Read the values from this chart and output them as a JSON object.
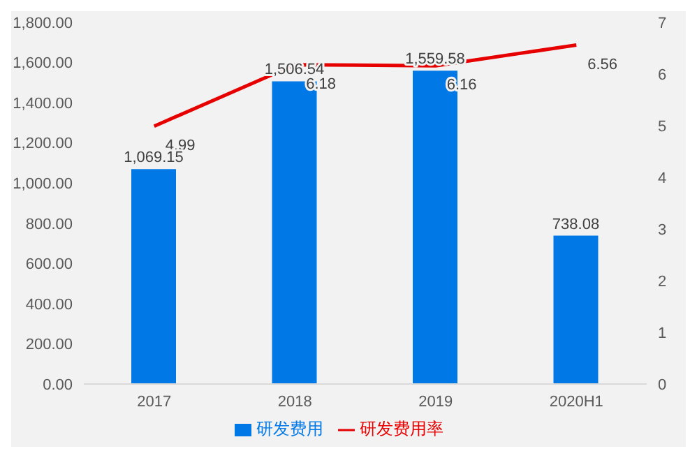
{
  "chart_data": {
    "type": "bar",
    "categories": [
      "2017",
      "2018",
      "2019",
      "2020H1"
    ],
    "series": [
      {
        "name": "研发费用",
        "color": "#0078e6",
        "values": [
          1069.15,
          1506.54,
          1559.58,
          738.08
        ],
        "value_labels": [
          "1,069.15",
          "1,506.54",
          "1,559.58",
          "738.08"
        ]
      },
      {
        "name": "研发费用率",
        "type": "line",
        "axis": "y2",
        "color": "#e60000",
        "values": [
          4.99,
          6.18,
          6.16,
          6.56
        ],
        "value_labels": [
          "4.99",
          "6.18",
          "6.16",
          "6.56"
        ]
      }
    ],
    "ylim": [
      0,
      1800
    ],
    "yticks": [
      {
        "value": 0,
        "label": "0.00"
      },
      {
        "value": 200,
        "label": "200.00"
      },
      {
        "value": 400,
        "label": "400.00"
      },
      {
        "value": 600,
        "label": "600.00"
      },
      {
        "value": 800,
        "label": "800.00"
      },
      {
        "value": 1000,
        "label": "1,000.00"
      },
      {
        "value": 1200,
        "label": "1,200.00"
      },
      {
        "value": 1400,
        "label": "1,400.00"
      },
      {
        "value": 1600,
        "label": "1,600.00"
      },
      {
        "value": 1800,
        "label": "1,800.00"
      }
    ],
    "y2lim": [
      0,
      7
    ],
    "y2ticks": [
      0,
      1,
      2,
      3,
      4,
      5,
      6,
      7
    ],
    "legend": "bottom",
    "marker": "none"
  }
}
